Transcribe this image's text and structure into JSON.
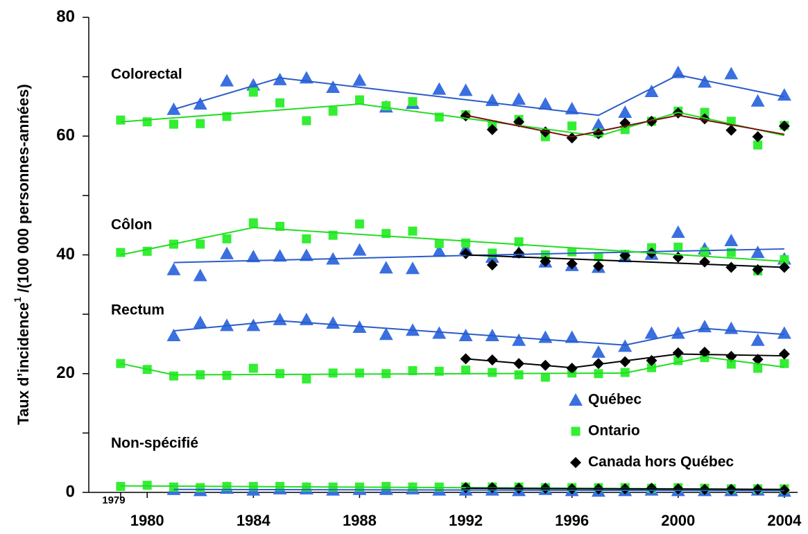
{
  "chart_data": {
    "type": "line",
    "y_label": "Taux d’incidence",
    "y_label_sup": "1",
    "y_label_rest": " /(100 000 personnes-années)",
    "xlim": [
      1977.8,
      2004.5
    ],
    "xticks": [
      1979,
      1980,
      1984,
      1988,
      1992,
      1996,
      2000,
      2004
    ],
    "ylim": [
      0,
      80
    ],
    "yticks": [
      0,
      20,
      40,
      60,
      80
    ],
    "yminor": [
      10,
      30,
      50,
      70
    ],
    "legend": "lower right",
    "groups": [
      {
        "label": "Colorectal",
        "series": [
          {
            "name": "Québec",
            "color": "#3a6fe0",
            "marker": "triangle",
            "trend_color": "#2a5cc8",
            "x": [
              1981,
              1982,
              1983,
              1984,
              1985,
              1986,
              1987,
              1988,
              1989,
              1990,
              1991,
              1992,
              1993,
              1994,
              1995,
              1996,
              1997,
              1998,
              1999,
              2000,
              2001,
              2002,
              2003,
              2004
            ],
            "values": [
              64.5,
              65.4,
              69.3,
              68.6,
              69.5,
              69.8,
              68.2,
              69.4,
              64.9,
              65.5,
              67.9,
              67.7,
              66.0,
              66.2,
              65.4,
              64.6,
              61.9,
              64.0,
              67.5,
              70.7,
              69.1,
              70.5,
              65.9,
              66.9
            ],
            "trend": {
              "x": [
                1981,
                1985,
                1997,
                2000,
                2004
              ],
              "values": [
                64.5,
                69.8,
                63.5,
                70.3,
                66.6
              ]
            }
          },
          {
            "name": "Ontario",
            "color": "#33ee33",
            "marker": "square",
            "trend_color": "#22dd22",
            "x": [
              1979,
              1980,
              1981,
              1982,
              1983,
              1984,
              1985,
              1986,
              1987,
              1988,
              1989,
              1990,
              1991,
              1992,
              1993,
              1994,
              1995,
              1996,
              1997,
              1998,
              1999,
              2000,
              2001,
              2002,
              2003,
              2004
            ],
            "values": [
              62.7,
              62.4,
              62.0,
              62.1,
              63.3,
              67.4,
              65.6,
              62.6,
              64.2,
              66.1,
              65.1,
              65.8,
              63.2,
              63.6,
              61.9,
              62.8,
              59.9,
              61.7,
              60.5,
              61.1,
              62.5,
              64.2,
              64.0,
              62.5,
              58.5,
              61.8
            ],
            "trend": {
              "x": [
                1979,
                1988,
                1997,
                2000,
                2004
              ],
              "values": [
                62.4,
                65.4,
                60.0,
                64.0,
                60.1
              ]
            }
          },
          {
            "name": "Canada hors Québec",
            "color": "#000000",
            "marker": "diamond",
            "trend_color": "#7a1010",
            "x": [
              1992,
              1993,
              1994,
              1995,
              1996,
              1997,
              1998,
              1999,
              2000,
              2001,
              2002,
              2003,
              2004
            ],
            "values": [
              63.4,
              61.1,
              62.4,
              60.7,
              59.7,
              60.4,
              62.2,
              62.5,
              63.9,
              62.9,
              61.0,
              59.9,
              61.7
            ],
            "trend": {
              "x": [
                1992,
                1996,
                2000,
                2004
              ],
              "values": [
                63.5,
                59.9,
                63.5,
                60.3
              ]
            }
          }
        ]
      },
      {
        "label": "Côlon",
        "series": [
          {
            "name": "Québec",
            "color": "#3a6fe0",
            "marker": "triangle",
            "trend_color": "#2a5cc8",
            "x": [
              1981,
              1982,
              1983,
              1984,
              1985,
              1986,
              1987,
              1988,
              1989,
              1990,
              1991,
              1992,
              1993,
              1994,
              1995,
              1996,
              1997,
              1998,
              1999,
              2000,
              2001,
              2002,
              2003,
              2004
            ],
            "values": [
              37.5,
              36.5,
              40.2,
              39.7,
              39.8,
              39.9,
              39.3,
              40.8,
              37.8,
              37.7,
              40.6,
              41.0,
              39.6,
              40.4,
              38.8,
              38.2,
              37.9,
              39.7,
              40.1,
              43.8,
              41.0,
              42.4,
              40.4,
              39.3
            ],
            "trend": {
              "x": [
                1981,
                1992,
                2004
              ],
              "values": [
                38.7,
                39.9,
                41.0
              ]
            }
          },
          {
            "name": "Ontario",
            "color": "#33ee33",
            "marker": "square",
            "trend_color": "#22dd22",
            "x": [
              1979,
              1980,
              1981,
              1982,
              1983,
              1984,
              1985,
              1986,
              1987,
              1988,
              1989,
              1990,
              1991,
              1992,
              1993,
              1994,
              1995,
              1996,
              1997,
              1998,
              1999,
              2000,
              2001,
              2002,
              2003,
              2004
            ],
            "values": [
              40.4,
              40.6,
              41.8,
              41.8,
              42.7,
              45.4,
              44.8,
              42.7,
              43.3,
              45.2,
              43.6,
              44.0,
              41.9,
              42.0,
              40.3,
              42.2,
              40.0,
              40.5,
              39.7,
              40.1,
              41.2,
              41.3,
              40.5,
              40.4,
              37.3,
              39.2
            ],
            "trend": {
              "x": [
                1979,
                1984,
                2004
              ],
              "values": [
                40.0,
                44.6,
                38.9
              ]
            }
          },
          {
            "name": "Canada hors Québec",
            "color": "#000000",
            "marker": "diamond",
            "trend_color": "#000000",
            "x": [
              1992,
              1993,
              1994,
              1995,
              1996,
              1997,
              1998,
              1999,
              2000,
              2001,
              2002,
              2003,
              2004
            ],
            "values": [
              40.2,
              38.3,
              40.3,
              38.9,
              38.5,
              38.1,
              39.9,
              40.3,
              39.6,
              38.8,
              37.9,
              37.5,
              37.9
            ],
            "trend": {
              "x": [
                1992,
                2004
              ],
              "values": [
                40.0,
                37.9
              ]
            }
          }
        ]
      },
      {
        "label": "Rectum",
        "series": [
          {
            "name": "Québec",
            "color": "#3a6fe0",
            "marker": "triangle",
            "trend_color": "#2a5cc8",
            "x": [
              1981,
              1982,
              1983,
              1984,
              1985,
              1986,
              1987,
              1988,
              1989,
              1990,
              1991,
              1992,
              1993,
              1994,
              1995,
              1996,
              1997,
              1998,
              1999,
              2000,
              2001,
              2002,
              2003,
              2004
            ],
            "values": [
              26.4,
              28.6,
              28.1,
              28.1,
              29.1,
              29.1,
              28.5,
              27.8,
              26.6,
              27.3,
              26.8,
              26.4,
              26.4,
              25.6,
              26.1,
              26.1,
              23.6,
              24.6,
              26.8,
              26.8,
              27.9,
              27.6,
              25.6,
              26.8
            ],
            "trend": {
              "x": [
                1981,
                1985,
                1998,
                2001,
                2004
              ],
              "values": [
                27.2,
                28.9,
                24.8,
                27.6,
                26.6
              ]
            }
          },
          {
            "name": "Ontario",
            "color": "#33ee33",
            "marker": "square",
            "trend_color": "#22dd22",
            "x": [
              1979,
              1980,
              1981,
              1982,
              1983,
              1984,
              1985,
              1986,
              1987,
              1988,
              1989,
              1990,
              1991,
              1992,
              1993,
              1994,
              1995,
              1996,
              1997,
              1998,
              1999,
              2000,
              2001,
              2002,
              2003,
              2004
            ],
            "values": [
              21.7,
              20.7,
              19.6,
              19.8,
              19.7,
              20.9,
              20.0,
              19.1,
              20.1,
              20.1,
              20.0,
              20.5,
              20.4,
              20.6,
              20.2,
              19.8,
              19.4,
              20.1,
              20.0,
              20.2,
              21.0,
              22.2,
              22.7,
              21.6,
              20.9,
              21.7
            ],
            "trend": {
              "x": [
                1979,
                1981,
                1998,
                2001,
                2004
              ],
              "values": [
                21.7,
                19.8,
                20.1,
                22.8,
                21.1
              ]
            }
          },
          {
            "name": "Canada hors Québec",
            "color": "#000000",
            "marker": "diamond",
            "trend_color": "#000000",
            "x": [
              1992,
              1993,
              1994,
              1995,
              1996,
              1997,
              1998,
              1999,
              2000,
              2001,
              2002,
              2003,
              2004
            ],
            "values": [
              22.5,
              22.3,
              21.7,
              21.4,
              20.9,
              21.7,
              22.0,
              22.2,
              23.5,
              23.6,
              22.9,
              22.4,
              23.3
            ],
            "trend": {
              "x": [
                1992,
                1996,
                2000,
                2004
              ],
              "values": [
                22.5,
                21.0,
                23.3,
                23.0
              ]
            }
          }
        ]
      },
      {
        "label": "Non-spécifié",
        "series": [
          {
            "name": "Québec",
            "color": "#3a6fe0",
            "marker": "triangle",
            "trend_color": "#2a5cc8",
            "x": [
              1981,
              1982,
              1983,
              1984,
              1985,
              1986,
              1987,
              1988,
              1989,
              1990,
              1991,
              1992,
              1993,
              1994,
              1995,
              1996,
              1997,
              1998,
              1999,
              2000,
              2001,
              2002,
              2003,
              2004
            ],
            "values": [
              0.5,
              0.3,
              0.7,
              0.4,
              0.6,
              0.6,
              0.4,
              0.5,
              0.5,
              0.6,
              0.4,
              0.4,
              0.4,
              0.3,
              0.5,
              0.3,
              0.2,
              0.3,
              0.4,
              0.3,
              0.3,
              0.3,
              0.4,
              0.2
            ],
            "trend": {
              "x": [
                1981,
                2004
              ],
              "values": [
                0.5,
                0.3
              ]
            }
          },
          {
            "name": "Ontario",
            "color": "#33ee33",
            "marker": "square",
            "trend_color": "#22dd22",
            "x": [
              1979,
              1980,
              1981,
              1982,
              1983,
              1984,
              1985,
              1986,
              1987,
              1988,
              1989,
              1990,
              1991,
              1992,
              1993,
              1994,
              1995,
              1996,
              1997,
              1998,
              1999,
              2000,
              2001,
              2002,
              2003,
              2004
            ],
            "values": [
              1.0,
              1.2,
              0.9,
              0.8,
              1.0,
              1.0,
              1.0,
              0.9,
              0.9,
              0.9,
              1.0,
              0.9,
              0.9,
              0.9,
              0.9,
              0.9,
              0.8,
              0.8,
              0.8,
              0.8,
              0.7,
              0.8,
              0.7,
              0.6,
              0.6,
              0.6
            ],
            "trend": {
              "x": [
                1979,
                2004
              ],
              "values": [
                1.1,
                0.5
              ]
            }
          },
          {
            "name": "Canada hors Québec",
            "color": "#000000",
            "marker": "diamond",
            "trend_color": "#000000",
            "x": [
              1992,
              1993,
              1994,
              1995,
              1996,
              1997,
              1998,
              1999,
              2000,
              2001,
              2002,
              2003,
              2004
            ],
            "values": [
              0.8,
              0.8,
              0.7,
              0.7,
              0.6,
              0.6,
              0.6,
              0.7,
              0.6,
              0.5,
              0.5,
              0.5,
              0.4
            ],
            "trend": {
              "x": [
                1992,
                2004
              ],
              "values": [
                0.7,
                0.5
              ]
            }
          }
        ]
      }
    ]
  }
}
